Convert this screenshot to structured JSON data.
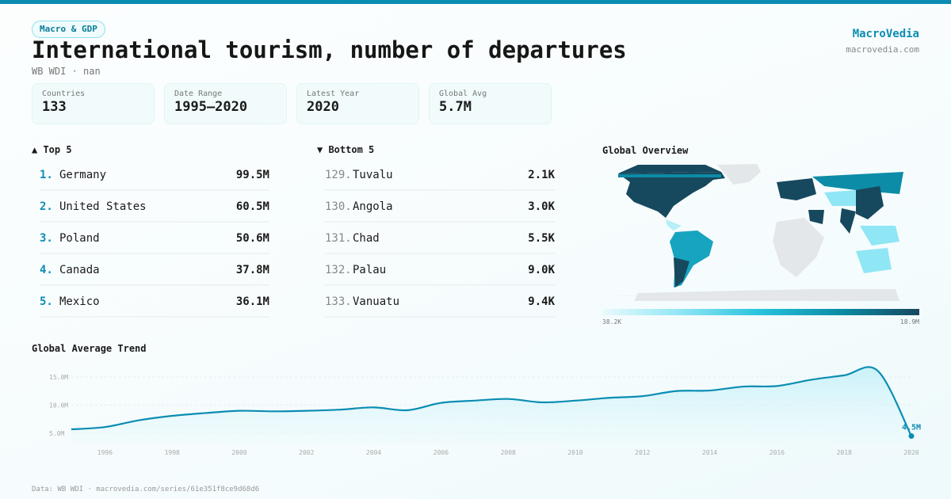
{
  "header": {
    "category": "Macro & GDP",
    "title": "International tourism, number of departures",
    "subtitle": "WB WDI · nan",
    "brand": "MacroVedia",
    "brand_url": "macrovedia.com"
  },
  "stats": [
    {
      "label": "Countries",
      "value": "133"
    },
    {
      "label": "Date Range",
      "value": "1995–2020"
    },
    {
      "label": "Latest Year",
      "value": "2020"
    },
    {
      "label": "Global Avg",
      "value": "5.7M"
    }
  ],
  "top": {
    "title": "▲ Top 5",
    "items": [
      {
        "rank": "1.",
        "name": "Germany",
        "value": "99.5M"
      },
      {
        "rank": "2.",
        "name": "United States",
        "value": "60.5M"
      },
      {
        "rank": "3.",
        "name": "Poland",
        "value": "50.6M"
      },
      {
        "rank": "4.",
        "name": "Canada",
        "value": "37.8M"
      },
      {
        "rank": "5.",
        "name": "Mexico",
        "value": "36.1M"
      }
    ]
  },
  "bottom": {
    "title": "▼ Bottom 5",
    "items": [
      {
        "rank": "129.",
        "name": "Tuvalu",
        "value": "2.1K"
      },
      {
        "rank": "130.",
        "name": "Angola",
        "value": "3.0K"
      },
      {
        "rank": "131.",
        "name": "Chad",
        "value": "5.5K"
      },
      {
        "rank": "132.",
        "name": "Palau",
        "value": "9.0K"
      },
      {
        "rank": "133.",
        "name": "Vanuatu",
        "value": "9.4K"
      }
    ]
  },
  "map": {
    "title": "Global Overview",
    "legend_min": "38.2K",
    "legend_max": "18.9M",
    "colors": [
      "#e9fafd",
      "#8fe6f5",
      "#27c2dd",
      "#0c8ca6",
      "#16495e"
    ],
    "no_data_color": "#e4e7ea"
  },
  "chart_data": {
    "type": "area",
    "title": "Global Average Trend",
    "x": [
      1995,
      1996,
      1997,
      1998,
      1999,
      2000,
      2001,
      2002,
      2003,
      2004,
      2005,
      2006,
      2007,
      2008,
      2009,
      2010,
      2011,
      2012,
      2013,
      2014,
      2015,
      2016,
      2017,
      2018,
      2019,
      2020
    ],
    "values": [
      5.7,
      6.1,
      7.3,
      8.1,
      8.6,
      9.0,
      8.9,
      9.0,
      9.2,
      9.6,
      9.1,
      10.4,
      10.8,
      11.1,
      10.5,
      10.8,
      11.3,
      11.6,
      12.5,
      12.6,
      13.3,
      13.4,
      14.5,
      15.3,
      16.1,
      4.5
    ],
    "unit": "M",
    "yticks": [
      "5.0M",
      "10.0M",
      "15.0M"
    ],
    "ytick_values": [
      5,
      10,
      15
    ],
    "xticks": [
      "1996",
      "1998",
      "2000",
      "2002",
      "2004",
      "2006",
      "2008",
      "2010",
      "2012",
      "2014",
      "2016",
      "2018",
      "2020"
    ],
    "last_label": "4.5M",
    "color": "#0b8db3",
    "grid": true
  },
  "footer": "Data: WB WDI · macrovedia.com/series/61e351f8ce9d68d6"
}
